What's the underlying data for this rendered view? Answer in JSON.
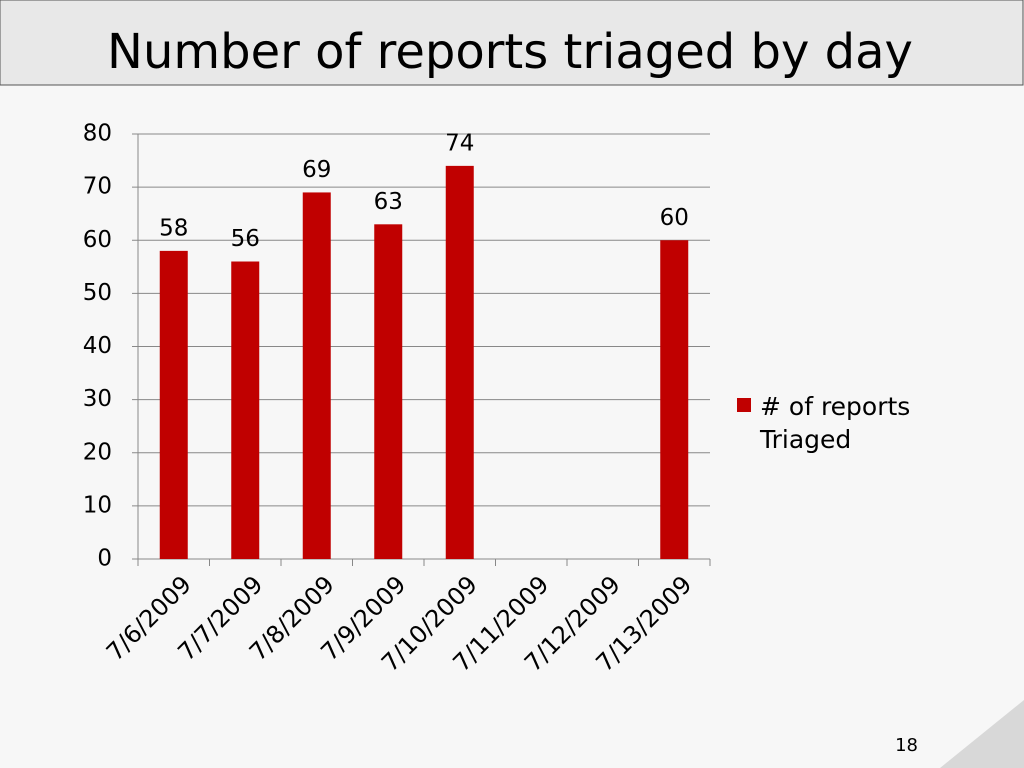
{
  "chart_data": {
    "type": "bar",
    "title": "Number of reports triaged by day",
    "categories": [
      "7/6/2009",
      "7/7/2009",
      "7/8/2009",
      "7/9/2009",
      "7/10/2009",
      "7/11/2009",
      "7/12/2009",
      "7/13/2009"
    ],
    "series": [
      {
        "name": "# of reports Triaged",
        "color": "#c00000",
        "values": [
          58,
          56,
          69,
          63,
          74,
          null,
          null,
          60
        ]
      }
    ],
    "ylim": [
      0,
      80
    ],
    "yticks": [
      0,
      10,
      20,
      30,
      40,
      50,
      60,
      70,
      80
    ],
    "grid": true,
    "legend": "right"
  },
  "slide_number": 18
}
